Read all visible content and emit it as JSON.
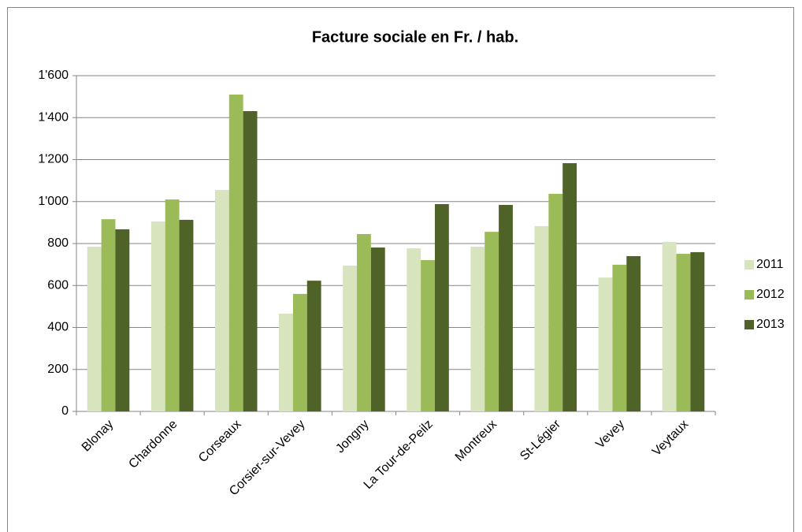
{
  "chart_data": {
    "type": "bar",
    "title": "Facture sociale en Fr. / hab.",
    "categories": [
      "Blonay",
      "Chardonne",
      "Corseaux",
      "Corsier-sur-Vevey",
      "Jongny",
      "La Tour-de-Peilz",
      "Montreux",
      "St-Légier",
      "Vevey",
      "Veytaux"
    ],
    "series": [
      {
        "name": "2011",
        "color": "#d7e4bd",
        "values": [
          785,
          905,
          1055,
          466,
          695,
          777,
          785,
          883,
          638,
          808
        ]
      },
      {
        "name": "2012",
        "color": "#9bbb59",
        "values": [
          916,
          1010,
          1510,
          560,
          845,
          721,
          856,
          1037,
          699,
          751
        ]
      },
      {
        "name": "2013",
        "color": "#4f6228",
        "values": [
          868,
          913,
          1431,
          623,
          781,
          988,
          984,
          1183,
          740,
          759
        ]
      }
    ],
    "ylim": [
      0,
      1600
    ],
    "yticks": [
      0,
      200,
      400,
      600,
      800,
      {
        "value": 1000,
        "label": "1'000"
      },
      {
        "value": 1200,
        "label": "1'200"
      },
      {
        "value": 1400,
        "label": "1'400"
      },
      {
        "value": 1600,
        "label": "1'600"
      }
    ],
    "grid": true,
    "legend": "right"
  }
}
